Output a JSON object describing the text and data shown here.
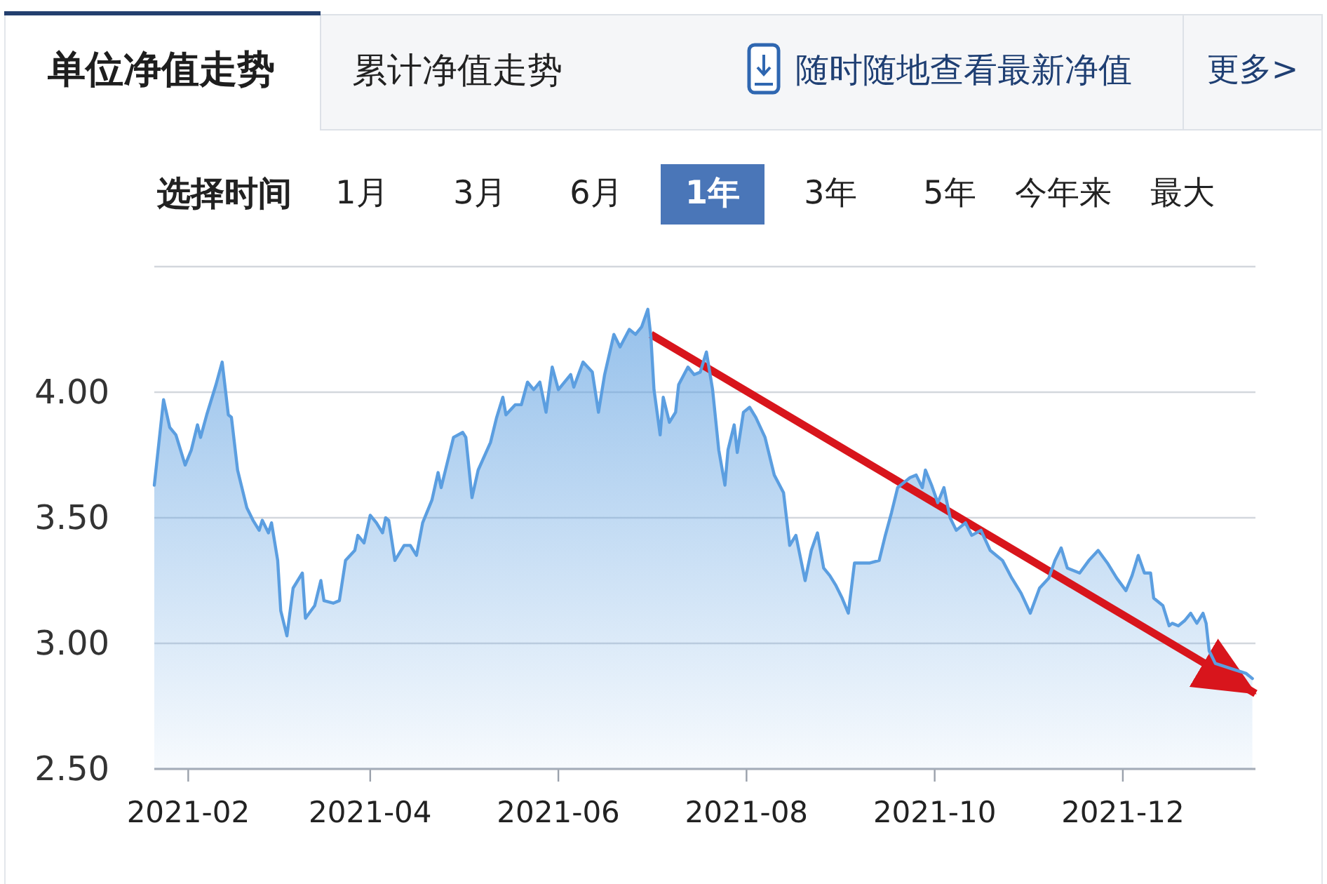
{
  "chart_data": {
    "type": "area",
    "title": "单位净值走势",
    "annotations": [
      "累计净值走势",
      "随时随地查看最新净值",
      "更多>",
      "选择时间",
      "1月",
      "3月",
      "6月",
      "1年",
      "3年",
      "5年",
      "今年来",
      "最大"
    ],
    "grid": "y",
    "xlim": [
      "2021-01-21",
      "2022-01-13"
    ],
    "xticks": [
      "2021-02",
      "2021-04",
      "2021-06",
      "2021-08",
      "2021-10",
      "2021-12"
    ],
    "ylim": [
      2.5,
      4.5
    ],
    "yticks": [
      {
        "value": 2.5,
        "label": "2.50"
      },
      {
        "value": 3.0,
        "label": "3.00"
      },
      {
        "value": 3.5,
        "label": "3.50"
      },
      {
        "value": 4.0,
        "label": "4.00"
      },
      {
        "value": 4.5,
        "label": null
      }
    ],
    "series": [
      {
        "color": "#5b9ee0",
        "x": [
          "2021-01-21",
          "2021-01-24",
          "2021-01-26",
          "2021-01-28",
          "2021-01-31",
          "2021-02-02",
          "2021-02-04",
          "2021-02-05",
          "2021-02-07",
          "2021-02-10",
          "2021-02-12",
          "2021-02-14",
          "2021-02-15",
          "2021-02-17",
          "2021-02-20",
          "2021-02-22",
          "2021-02-24",
          "2021-02-25",
          "2021-02-27",
          "2021-02-28",
          "2021-03-02",
          "2021-03-03",
          "2021-03-05",
          "2021-03-07",
          "2021-03-10",
          "2021-03-11",
          "2021-03-14",
          "2021-03-16",
          "2021-03-17",
          "2021-03-20",
          "2021-03-22",
          "2021-03-24",
          "2021-03-27",
          "2021-03-28",
          "2021-03-30",
          "2021-04-01",
          "2021-04-03",
          "2021-04-05",
          "2021-04-06",
          "2021-04-07",
          "2021-04-09",
          "2021-04-12",
          "2021-04-14",
          "2021-04-16",
          "2021-04-18",
          "2021-04-21",
          "2021-04-23",
          "2021-04-24",
          "2021-04-28",
          "2021-05-01",
          "2021-05-02",
          "2021-05-04",
          "2021-05-06",
          "2021-05-10",
          "2021-05-12",
          "2021-05-14",
          "2021-05-15",
          "2021-05-18",
          "2021-05-20",
          "2021-05-22",
          "2021-05-24",
          "2021-05-26",
          "2021-05-28",
          "2021-05-30",
          "2021-06-01",
          "2021-06-03",
          "2021-06-05",
          "2021-06-06",
          "2021-06-09",
          "2021-06-12",
          "2021-06-14",
          "2021-06-16",
          "2021-06-19",
          "2021-06-21",
          "2021-06-24",
          "2021-06-26",
          "2021-06-28",
          "2021-06-30",
          "2021-07-01",
          "2021-07-02",
          "2021-07-04",
          "2021-07-05",
          "2021-07-07",
          "2021-07-09",
          "2021-07-10",
          "2021-07-13",
          "2021-07-15",
          "2021-07-17",
          "2021-07-19",
          "2021-07-21",
          "2021-07-23",
          "2021-07-25",
          "2021-07-26",
          "2021-07-28",
          "2021-07-29",
          "2021-07-31",
          "2021-08-02",
          "2021-08-04",
          "2021-08-07",
          "2021-08-10",
          "2021-08-13",
          "2021-08-15",
          "2021-08-17",
          "2021-08-20",
          "2021-08-22",
          "2021-08-24",
          "2021-08-26",
          "2021-08-28",
          "2021-08-30",
          "2021-09-01",
          "2021-09-03",
          "2021-09-05",
          "2021-09-07",
          "2021-09-10",
          "2021-09-13",
          "2021-09-15",
          "2021-09-17",
          "2021-09-19",
          "2021-09-21",
          "2021-09-23",
          "2021-09-25",
          "2021-09-27",
          "2021-09-28",
          "2021-09-30",
          "2021-10-02",
          "2021-10-04",
          "2021-10-06",
          "2021-10-08",
          "2021-10-11",
          "2021-10-13",
          "2021-10-16",
          "2021-10-19",
          "2021-10-21",
          "2021-10-23",
          "2021-10-26",
          "2021-10-29",
          "2021-11-01",
          "2021-11-04",
          "2021-11-07",
          "2021-11-09",
          "2021-11-11",
          "2021-11-13",
          "2021-11-17",
          "2021-11-20",
          "2021-11-23",
          "2021-11-26",
          "2021-11-29",
          "2021-12-02",
          "2021-12-04",
          "2021-12-06",
          "2021-12-08",
          "2021-12-10",
          "2021-12-11",
          "2021-12-14",
          "2021-12-16",
          "2021-12-17",
          "2021-12-19",
          "2021-12-21",
          "2021-12-23",
          "2021-12-25",
          "2021-12-27",
          "2021-12-28",
          "2021-12-29",
          "2021-12-31",
          "2022-01-05",
          "2022-01-10",
          "2022-01-12"
        ],
        "values": [
          3.63,
          3.97,
          3.86,
          3.83,
          3.71,
          3.77,
          3.87,
          3.82,
          3.91,
          4.03,
          4.12,
          3.91,
          3.9,
          3.69,
          3.54,
          3.49,
          3.45,
          3.49,
          3.44,
          3.48,
          3.33,
          3.13,
          3.03,
          3.22,
          3.28,
          3.1,
          3.15,
          3.25,
          3.17,
          3.16,
          3.17,
          3.33,
          3.37,
          3.43,
          3.4,
          3.51,
          3.48,
          3.44,
          3.5,
          3.49,
          3.33,
          3.39,
          3.39,
          3.35,
          3.48,
          3.57,
          3.68,
          3.62,
          3.82,
          3.84,
          3.82,
          3.58,
          3.69,
          3.8,
          3.9,
          3.98,
          3.91,
          3.95,
          3.95,
          4.04,
          4.01,
          4.04,
          3.92,
          4.1,
          4.01,
          4.04,
          4.07,
          4.02,
          4.12,
          4.08,
          3.92,
          4.07,
          4.23,
          4.18,
          4.25,
          4.23,
          4.26,
          4.33,
          4.22,
          4.01,
          3.83,
          3.98,
          3.88,
          3.92,
          4.03,
          4.1,
          4.07,
          4.08,
          4.16,
          4.01,
          3.77,
          3.63,
          3.77,
          3.87,
          3.76,
          3.92,
          3.94,
          3.9,
          3.82,
          3.67,
          3.6,
          3.39,
          3.43,
          3.25,
          3.37,
          3.44,
          3.3,
          3.27,
          3.23,
          3.18,
          3.12,
          3.32,
          3.32,
          3.32,
          3.33,
          3.43,
          3.52,
          3.62,
          3.64,
          3.66,
          3.67,
          3.62,
          3.69,
          3.63,
          3.56,
          3.62,
          3.5,
          3.45,
          3.48,
          3.43,
          3.45,
          3.37,
          3.35,
          3.33,
          3.26,
          3.2,
          3.12,
          3.22,
          3.26,
          3.33,
          3.38,
          3.3,
          3.28,
          3.33,
          3.37,
          3.32,
          3.26,
          3.21,
          3.27,
          3.35,
          3.28,
          3.28,
          3.18,
          3.15,
          3.07,
          3.08,
          3.07,
          3.09,
          3.12,
          3.08,
          3.12,
          3.08,
          2.97,
          2.92,
          2.9,
          2.88,
          2.86
        ]
      },
      {
        "type": "line",
        "color": "#d8151c",
        "x": [
          "2021-07-01",
          "2022-01-13"
        ],
        "values": [
          4.23,
          2.8
        ]
      }
    ]
  }
}
